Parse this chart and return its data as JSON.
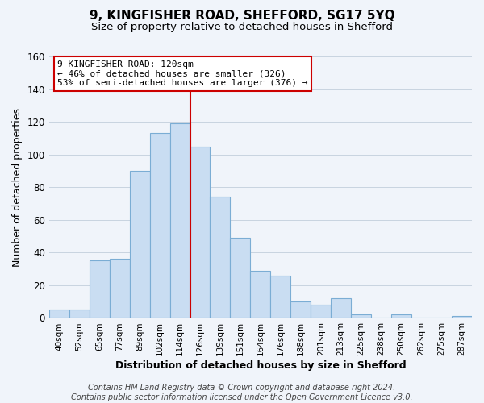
{
  "title": "9, KINGFISHER ROAD, SHEFFORD, SG17 5YQ",
  "subtitle": "Size of property relative to detached houses in Shefford",
  "xlabel": "Distribution of detached houses by size in Shefford",
  "ylabel": "Number of detached properties",
  "bar_labels": [
    "40sqm",
    "52sqm",
    "65sqm",
    "77sqm",
    "89sqm",
    "102sqm",
    "114sqm",
    "126sqm",
    "139sqm",
    "151sqm",
    "164sqm",
    "176sqm",
    "188sqm",
    "201sqm",
    "213sqm",
    "225sqm",
    "238sqm",
    "250sqm",
    "262sqm",
    "275sqm",
    "287sqm"
  ],
  "bar_values": [
    5,
    5,
    35,
    36,
    90,
    113,
    119,
    105,
    74,
    49,
    29,
    26,
    10,
    8,
    12,
    2,
    0,
    2,
    0,
    0,
    1
  ],
  "bar_color": "#c9ddf2",
  "bar_edge_color": "#7badd4",
  "vline_x": 7.0,
  "vline_color": "#cc0000",
  "annotation_text": "9 KINGFISHER ROAD: 120sqm\n← 46% of detached houses are smaller (326)\n53% of semi-detached houses are larger (376) →",
  "annotation_box_color": "#ffffff",
  "annotation_box_edge": "#cc0000",
  "ylim": [
    0,
    160
  ],
  "yticks": [
    0,
    20,
    40,
    60,
    80,
    100,
    120,
    140,
    160
  ],
  "footer": "Contains HM Land Registry data © Crown copyright and database right 2024.\nContains public sector information licensed under the Open Government Licence v3.0.",
  "bg_color": "#f0f4fa",
  "grid_color": "#c8d4e0",
  "title_fontsize": 11,
  "subtitle_fontsize": 9.5
}
